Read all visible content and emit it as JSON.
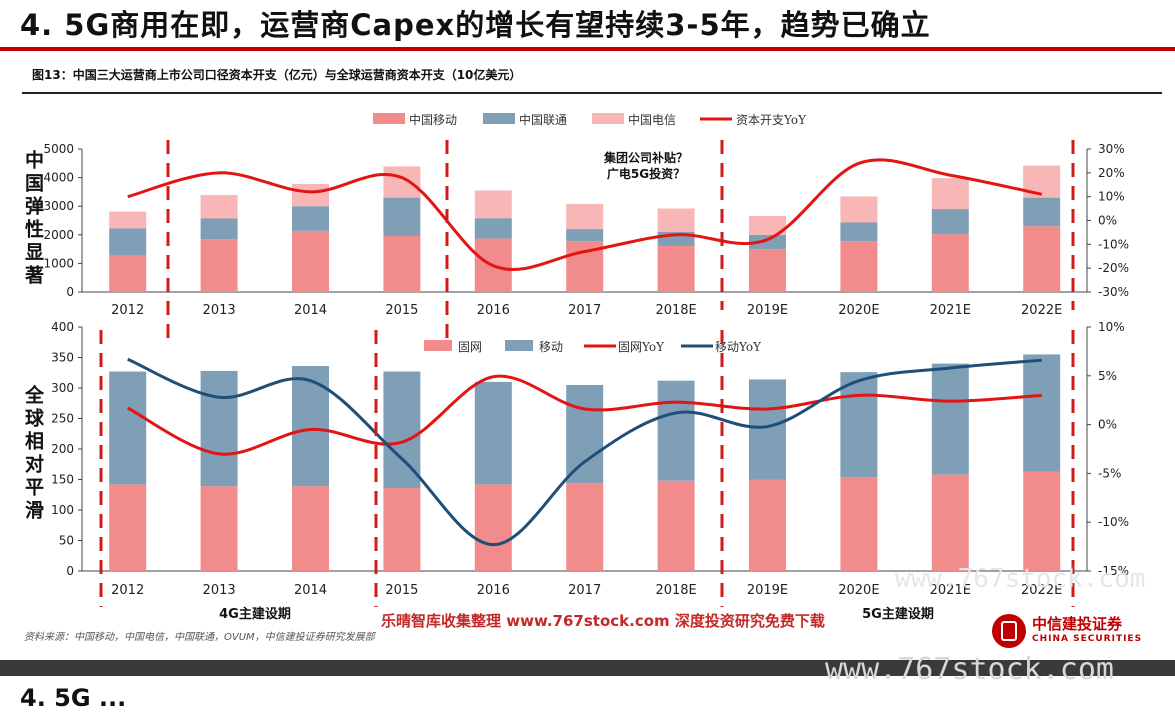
{
  "slide_title": "4.  5G商用在即，运营商Capex的增长有望持续3-5年，趋势已确立",
  "figure_caption": "图13：中国三大运营商上市公司口径资本开支（亿元）与全球运营商资本开支（10亿美元）",
  "top_side_label": "中国弹性显著",
  "bottom_side_label": "全球相对平滑",
  "period_4g_label": "4G主建设期",
  "period_5g_label": "5G主建设期",
  "annotation_line1": "集团公司补贴？",
  "annotation_line2": "广电5G投资？",
  "source_note": "资料来源：中国移动，中国电信，中国联通，OVUM，中信建投证券研究发展部",
  "watermark_text": "乐晴智库收集整理 www.767stock.com 深度投资研究免费下载",
  "watermark_url_1": "www.767stock.com",
  "watermark_url_2": "www.767stock.com",
  "logo": {
    "cn": "中信建投证券",
    "en": "CHINA SECURITIES"
  },
  "next_title": "4. 5G ...",
  "colors": {
    "red_bar": "#f28b8b",
    "blue_bar": "#7f9fb7",
    "pink_bar": "#f8b6b6",
    "red_line": "#e31414",
    "navy_line": "#1f4e79",
    "dash": "#d11a1a"
  },
  "chart_data": [
    {
      "type": "bar",
      "stacked": true,
      "categories": [
        "2012",
        "2013",
        "2014",
        "2015",
        "2016",
        "2017",
        "2018E",
        "2019E",
        "2020E",
        "2021E",
        "2022E"
      ],
      "series": [
        {
          "name": "中国移动",
          "values": [
            1280,
            1850,
            2140,
            1960,
            1870,
            1780,
            1610,
            1500,
            1780,
            2020,
            2300
          ]
        },
        {
          "name": "中国联通",
          "values": [
            950,
            720,
            860,
            1340,
            710,
            420,
            490,
            500,
            650,
            880,
            1000
          ]
        },
        {
          "name": "中国电信",
          "values": [
            580,
            820,
            780,
            1090,
            970,
            880,
            820,
            660,
            910,
            1080,
            1120
          ]
        }
      ],
      "line_series": [
        {
          "name": "资本开支YoY",
          "values": [
            10,
            20,
            12,
            18,
            -19,
            -13,
            -6,
            -8,
            24,
            19,
            11
          ]
        }
      ],
      "ylim": [
        0,
        5000
      ],
      "yticks": [
        0,
        1000,
        2000,
        3000,
        4000,
        5000
      ],
      "y2lim": [
        -30,
        30
      ],
      "y2ticks": [
        "-30%",
        "-20%",
        "-10%",
        "0%",
        "10%",
        "20%",
        "30%"
      ],
      "legend": "top-center"
    },
    {
      "type": "bar",
      "stacked": true,
      "categories": [
        "2012",
        "2013",
        "2014",
        "2015",
        "2016",
        "2017",
        "2018E",
        "2019E",
        "2020E",
        "2021E",
        "2022E"
      ],
      "series": [
        {
          "name": "固网",
          "values": [
            142,
            139,
            139,
            136,
            142,
            144,
            148,
            150,
            154,
            158,
            163
          ]
        },
        {
          "name": "移动",
          "values": [
            185,
            189,
            197,
            191,
            168,
            161,
            164,
            164,
            172,
            182,
            192
          ]
        }
      ],
      "line_series": [
        {
          "name": "固网YoY",
          "values": [
            1.7,
            -3.0,
            -0.5,
            -1.8,
            4.9,
            1.6,
            2.3,
            1.6,
            3.0,
            2.4,
            3.0
          ]
        },
        {
          "name": "移动YoY",
          "values": [
            6.7,
            2.8,
            4.5,
            -3.5,
            -12.3,
            -3.8,
            1.2,
            -0.2,
            4.5,
            5.8,
            6.6
          ]
        }
      ],
      "ylim": [
        0,
        400
      ],
      "yticks": [
        0,
        50,
        100,
        150,
        200,
        250,
        300,
        350,
        400
      ],
      "y2lim": [
        -15,
        10
      ],
      "y2ticks": [
        "-15%",
        "-10%",
        "-5%",
        "0%",
        "5%",
        "10%"
      ],
      "legend": "top-center"
    }
  ]
}
